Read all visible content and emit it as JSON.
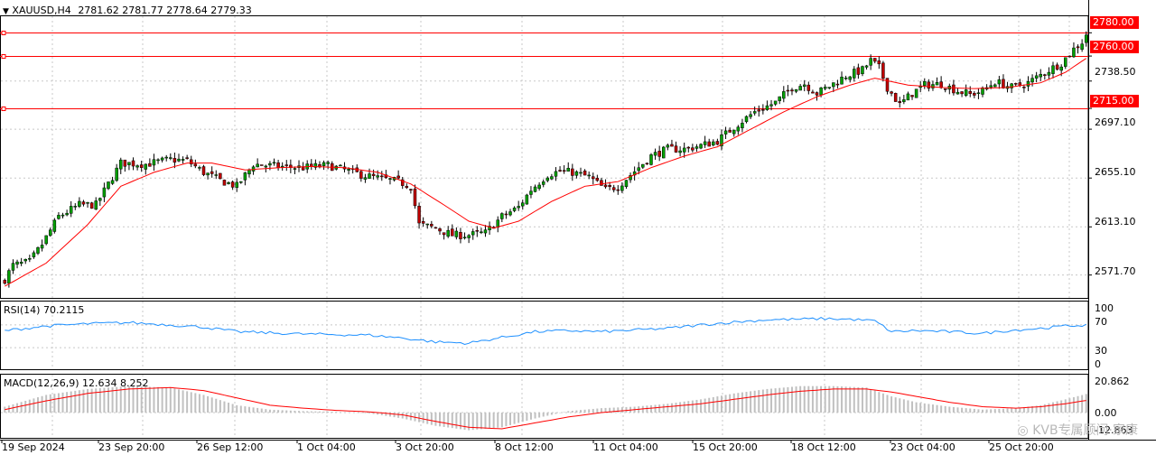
{
  "header": {
    "symbol": "XAUUSD,H4",
    "ohlc": "2781.62 2781.77 2778.64 2779.33"
  },
  "price_axis": {
    "labels": [
      "2738.50",
      "2697.10",
      "2655.10",
      "2613.10",
      "2571.70"
    ],
    "levels": [
      {
        "label": "2780.00",
        "value": 2780
      },
      {
        "label": "2760.00",
        "value": 2760
      },
      {
        "label": "2715.00",
        "value": 2715
      }
    ]
  },
  "rsi": {
    "title": "RSI(14) 70.2115",
    "axis_labels": [
      "100",
      "70",
      "30",
      "0"
    ]
  },
  "macd": {
    "title": "MACD(12,26,9) 12.634 8.252",
    "axis_labels": [
      "20.862",
      "0.00",
      "-12.863"
    ]
  },
  "time_axis": {
    "labels": [
      "19 Sep 2024",
      "23 Sep 20:00",
      "26 Sep 12:00",
      "1 Oct 04:00",
      "3 Oct 20:00",
      "8 Oct 12:00",
      "11 Oct 04:00",
      "15 Oct 20:00",
      "18 Oct 12:00",
      "23 Oct 04:00",
      "25 Oct 20:00"
    ]
  },
  "watermark": "KVB专属顾问·家康",
  "colors": {
    "bull": "#00a000",
    "bear": "#c00000",
    "ma": "#ff0000",
    "rsi_line": "#1e90ff",
    "macd_hist": "#c0c0c0",
    "macd_signal": "#ff0000",
    "level_line": "#ff0000"
  },
  "chart_data": {
    "type": "candlestick",
    "symbol": "XAUUSD",
    "timeframe": "H4",
    "ylim": [
      2552,
      2795
    ],
    "grid": true,
    "close_keypoints": [
      [
        0,
        2568
      ],
      [
        2,
        2580
      ],
      [
        6,
        2583
      ],
      [
        9,
        2598
      ],
      [
        13,
        2622
      ],
      [
        18,
        2632
      ],
      [
        22,
        2632
      ],
      [
        28,
        2668
      ],
      [
        34,
        2667
      ],
      [
        40,
        2671
      ],
      [
        44,
        2670
      ],
      [
        48,
        2660
      ],
      [
        52,
        2653
      ],
      [
        56,
        2648
      ],
      [
        60,
        2667
      ],
      [
        66,
        2665
      ],
      [
        72,
        2664
      ],
      [
        78,
        2666
      ],
      [
        82,
        2662
      ],
      [
        86,
        2658
      ],
      [
        90,
        2655
      ],
      [
        95,
        2652
      ],
      [
        98,
        2648
      ],
      [
        100,
        2615
      ],
      [
        104,
        2612
      ],
      [
        108,
        2606
      ],
      [
        112,
        2606
      ],
      [
        116,
        2608
      ],
      [
        120,
        2622
      ],
      [
        124,
        2630
      ],
      [
        127,
        2645
      ],
      [
        131,
        2658
      ],
      [
        134,
        2661
      ],
      [
        137,
        2660
      ],
      [
        141,
        2656
      ],
      [
        145,
        2645
      ],
      [
        148,
        2648
      ],
      [
        152,
        2661
      ],
      [
        156,
        2674
      ],
      [
        160,
        2680
      ],
      [
        164,
        2680
      ],
      [
        168,
        2683
      ],
      [
        172,
        2687
      ],
      [
        176,
        2699
      ],
      [
        181,
        2712
      ],
      [
        186,
        2720
      ],
      [
        190,
        2733
      ],
      [
        193,
        2736
      ],
      [
        196,
        2728
      ],
      [
        199,
        2734
      ],
      [
        203,
        2743
      ],
      [
        207,
        2748
      ],
      [
        209,
        2756
      ],
      [
        211,
        2750
      ],
      [
        213,
        2733
      ],
      [
        216,
        2718
      ],
      [
        219,
        2728
      ],
      [
        222,
        2735
      ],
      [
        226,
        2736
      ],
      [
        230,
        2730
      ],
      [
        233,
        2727
      ],
      [
        236,
        2730
      ],
      [
        239,
        2738
      ],
      [
        243,
        2733
      ],
      [
        247,
        2737
      ],
      [
        251,
        2746
      ],
      [
        255,
        2754
      ],
      [
        258,
        2766
      ],
      [
        260,
        2772
      ],
      [
        261,
        2779
      ]
    ],
    "moving_average_keypoints": [
      [
        0,
        2562
      ],
      [
        10,
        2582
      ],
      [
        20,
        2615
      ],
      [
        28,
        2648
      ],
      [
        36,
        2660
      ],
      [
        44,
        2668
      ],
      [
        50,
        2668
      ],
      [
        58,
        2662
      ],
      [
        66,
        2664
      ],
      [
        74,
        2665
      ],
      [
        82,
        2664
      ],
      [
        90,
        2660
      ],
      [
        98,
        2650
      ],
      [
        106,
        2632
      ],
      [
        112,
        2618
      ],
      [
        118,
        2612
      ],
      [
        124,
        2618
      ],
      [
        132,
        2635
      ],
      [
        140,
        2648
      ],
      [
        148,
        2652
      ],
      [
        156,
        2664
      ],
      [
        164,
        2674
      ],
      [
        172,
        2682
      ],
      [
        180,
        2697
      ],
      [
        188,
        2712
      ],
      [
        196,
        2725
      ],
      [
        204,
        2735
      ],
      [
        210,
        2741
      ],
      [
        218,
        2735
      ],
      [
        226,
        2733
      ],
      [
        234,
        2732
      ],
      [
        242,
        2733
      ],
      [
        250,
        2737
      ],
      [
        256,
        2746
      ],
      [
        261,
        2758
      ]
    ],
    "rsi": {
      "name": "RSI(14)",
      "last": 70.2115,
      "ylim": [
        0,
        100
      ],
      "levels": [
        70,
        30
      ],
      "keypoints": [
        [
          0,
          60
        ],
        [
          10,
          68
        ],
        [
          20,
          72
        ],
        [
          30,
          74
        ],
        [
          40,
          70
        ],
        [
          48,
          66
        ],
        [
          56,
          58
        ],
        [
          64,
          56
        ],
        [
          72,
          54
        ],
        [
          80,
          53
        ],
        [
          88,
          52
        ],
        [
          96,
          47
        ],
        [
          104,
          40
        ],
        [
          112,
          38
        ],
        [
          120,
          48
        ],
        [
          128,
          58
        ],
        [
          136,
          60
        ],
        [
          144,
          58
        ],
        [
          152,
          61
        ],
        [
          160,
          64
        ],
        [
          168,
          70
        ],
        [
          176,
          75
        ],
        [
          184,
          79
        ],
        [
          192,
          80
        ],
        [
          198,
          81
        ],
        [
          204,
          80
        ],
        [
          210,
          77
        ],
        [
          214,
          58
        ],
        [
          220,
          60
        ],
        [
          228,
          58
        ],
        [
          236,
          55
        ],
        [
          242,
          60
        ],
        [
          250,
          64
        ],
        [
          256,
          68
        ],
        [
          261,
          70
        ]
      ]
    },
    "macd": {
      "name": "MACD(12,26,9)",
      "main_last": 12.634,
      "signal_last": 8.252,
      "ylim": [
        -12.863,
        20.862
      ],
      "histogram_keypoints": [
        [
          0,
          4
        ],
        [
          10,
          12
        ],
        [
          20,
          16
        ],
        [
          30,
          18
        ],
        [
          40,
          17
        ],
        [
          48,
          12
        ],
        [
          56,
          5
        ],
        [
          64,
          2
        ],
        [
          72,
          1
        ],
        [
          80,
          0.5
        ],
        [
          88,
          -0.5
        ],
        [
          96,
          -4
        ],
        [
          104,
          -9
        ],
        [
          112,
          -12
        ],
        [
          120,
          -10
        ],
        [
          128,
          -4
        ],
        [
          136,
          1
        ],
        [
          144,
          3
        ],
        [
          152,
          4
        ],
        [
          160,
          6
        ],
        [
          168,
          9
        ],
        [
          176,
          13
        ],
        [
          184,
          16
        ],
        [
          192,
          18
        ],
        [
          200,
          18
        ],
        [
          208,
          17
        ],
        [
          214,
          11
        ],
        [
          220,
          7
        ],
        [
          228,
          4
        ],
        [
          236,
          2
        ],
        [
          244,
          3
        ],
        [
          250,
          5
        ],
        [
          256,
          9
        ],
        [
          261,
          12.634
        ]
      ],
      "signal_keypoints": [
        [
          0,
          2
        ],
        [
          10,
          8
        ],
        [
          20,
          13
        ],
        [
          30,
          16
        ],
        [
          40,
          17
        ],
        [
          48,
          15
        ],
        [
          56,
          10
        ],
        [
          64,
          5
        ],
        [
          72,
          3
        ],
        [
          80,
          1.5
        ],
        [
          88,
          0.5
        ],
        [
          96,
          -1.5
        ],
        [
          104,
          -6
        ],
        [
          112,
          -10
        ],
        [
          120,
          -11
        ],
        [
          128,
          -7
        ],
        [
          136,
          -3
        ],
        [
          144,
          0
        ],
        [
          152,
          2
        ],
        [
          160,
          4
        ],
        [
          168,
          6
        ],
        [
          176,
          9
        ],
        [
          184,
          12
        ],
        [
          192,
          14.5
        ],
        [
          200,
          16
        ],
        [
          208,
          16
        ],
        [
          214,
          14
        ],
        [
          220,
          11
        ],
        [
          228,
          7
        ],
        [
          236,
          4
        ],
        [
          244,
          3
        ],
        [
          250,
          4
        ],
        [
          256,
          6
        ],
        [
          261,
          8.252
        ]
      ]
    }
  }
}
